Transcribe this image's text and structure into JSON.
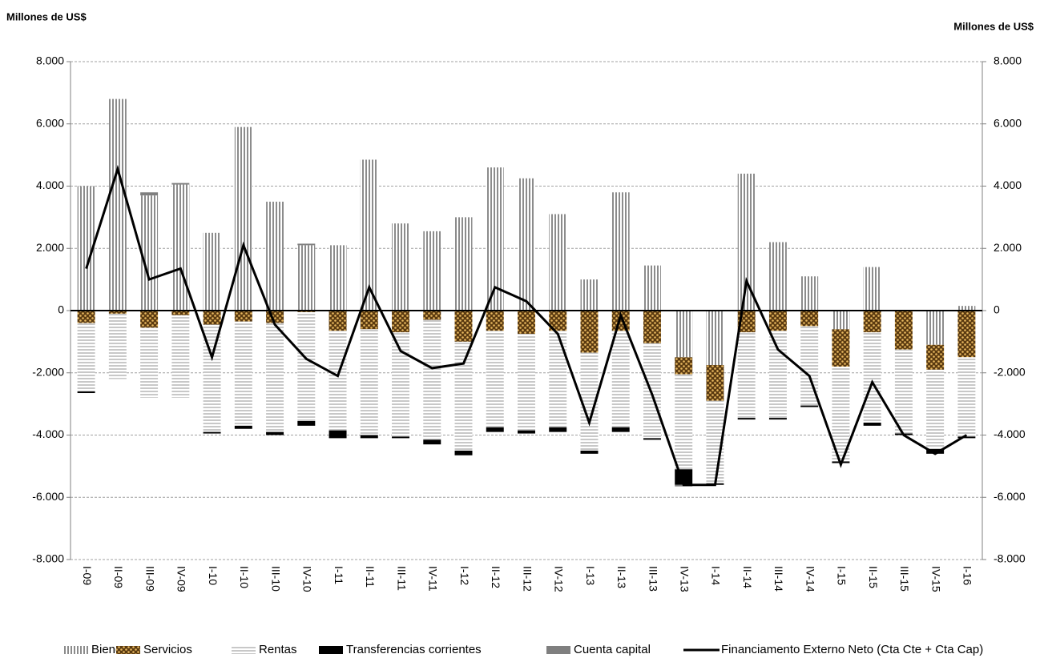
{
  "chart_data": {
    "type": "bar",
    "stacked": true,
    "ylabel": "Millones de US$",
    "y2label": "Millones de US$",
    "categories": [
      "I-09",
      "II-09",
      "III-09",
      "IV-09",
      "I-10",
      "II-10",
      "III-10",
      "IV-10",
      "I-11",
      "II-11",
      "III-11",
      "IV-11",
      "I-12",
      "II-12",
      "III-12",
      "IV-12",
      "I-13",
      "II-13",
      "III-13",
      "IV-13",
      "I-14",
      "II-14",
      "III-14",
      "IV-14",
      "I-15",
      "II-15",
      "III-15",
      "IV-15",
      "I-16"
    ],
    "series": [
      {
        "name": "Bienes",
        "color": "#8c8c8c",
        "values": [
          4000,
          6800,
          3700,
          4050,
          2500,
          5900,
          3500,
          2100,
          2100,
          4850,
          2800,
          2550,
          3000,
          4600,
          4250,
          3100,
          1000,
          3800,
          1450,
          -1500,
          -1750,
          4400,
          2200,
          1100,
          -600,
          1400,
          0,
          -1100,
          150
        ]
      },
      {
        "name": "Servicios",
        "color": "#5a3a10",
        "values": [
          -400,
          -100,
          -550,
          -150,
          -450,
          -350,
          -400,
          -50,
          -650,
          -600,
          -700,
          -300,
          -1000,
          -650,
          -750,
          -650,
          -1350,
          -650,
          -1050,
          -550,
          -1150,
          -700,
          -650,
          -500,
          -1200,
          -700,
          -1250,
          -800,
          -1500
        ]
      },
      {
        "name": "Rentas",
        "color": "#c8c8c8",
        "values": [
          -2200,
          -2100,
          -2250,
          -2650,
          -3450,
          -3350,
          -3500,
          -3500,
          -3200,
          -3400,
          -3350,
          -3850,
          -3500,
          -3100,
          -3100,
          -3100,
          -3150,
          -3100,
          -3050,
          -3050,
          -2650,
          -2750,
          -2800,
          -2550,
          -3050,
          -2900,
          -2700,
          -2550,
          -2550
        ]
      },
      {
        "name": "Transferencias corrientes",
        "color": "#000000",
        "values": [
          -50,
          0,
          0,
          0,
          -50,
          -100,
          -100,
          -150,
          -250,
          -100,
          -50,
          -150,
          -150,
          -150,
          -100,
          -150,
          -100,
          -150,
          -50,
          -500,
          -50,
          -50,
          -50,
          -50,
          -50,
          -100,
          -50,
          -150,
          -50
        ]
      },
      {
        "name": "Cuenta capital",
        "color": "#7f7f7f",
        "values": [
          0,
          0,
          100,
          50,
          0,
          0,
          0,
          50,
          0,
          0,
          0,
          0,
          0,
          0,
          0,
          0,
          0,
          0,
          0,
          -50,
          0,
          0,
          0,
          0,
          0,
          0,
          0,
          0,
          0
        ]
      },
      {
        "name": "Financiamento Externo Neto (Cta Cte + Cta Cap)",
        "color": "#000000",
        "type": "line",
        "values": [
          1350,
          4550,
          1000,
          1350,
          -1500,
          2100,
          -450,
          -1550,
          -2100,
          750,
          -1300,
          -1850,
          -1700,
          750,
          300,
          -750,
          -3600,
          -150,
          -2700,
          -5600,
          -5600,
          950,
          -1250,
          -2100,
          -4950,
          -2300,
          -4000,
          -4600,
          -4000
        ]
      }
    ],
    "ylim": [
      -8000,
      8000
    ],
    "yticks": [
      {
        "value": -8000,
        "label": "-8.000"
      },
      {
        "value": -6000,
        "label": "-6.000"
      },
      {
        "value": -4000,
        "label": "-4.000"
      },
      {
        "value": -2000,
        "label": "-2.000"
      },
      0,
      {
        "value": 2000,
        "label": "2.000"
      },
      {
        "value": 4000,
        "label": "4.000"
      },
      {
        "value": 6000,
        "label": "6.000"
      },
      {
        "value": 8000,
        "label": "8.000"
      }
    ],
    "y2lim": [
      -8000,
      8000
    ],
    "y2ticks": [
      {
        "value": -8000,
        "label": "-8.000"
      },
      {
        "value": -6000,
        "label": "-6.000"
      },
      {
        "value": -4000,
        "label": "-4.000"
      },
      {
        "value": -2000,
        "label": "-2.000"
      },
      0,
      {
        "value": 2000,
        "label": "2.000"
      },
      {
        "value": 4000,
        "label": "4.000"
      },
      {
        "value": 6000,
        "label": "6.000"
      },
      {
        "value": 8000,
        "label": "8.000"
      }
    ],
    "grid": true,
    "legend": "bottom"
  }
}
